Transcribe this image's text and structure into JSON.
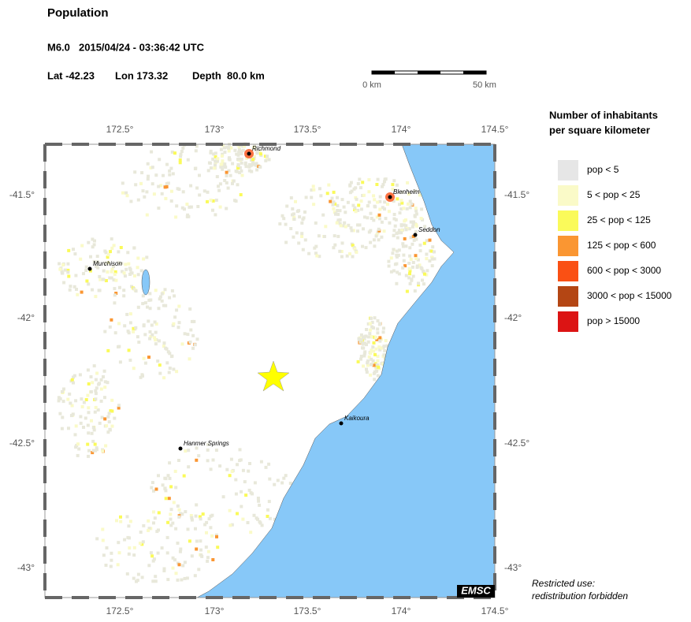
{
  "header": {
    "title": "Population",
    "magnitude": "M6.0",
    "datetime": "2015/04/24 - 03:36:42 UTC",
    "lat": "Lat -42.23",
    "lon": "Lon 173.32",
    "depth": "Depth  80.0 km"
  },
  "scale_bar": {
    "start": "0 km",
    "end": "50 km"
  },
  "map": {
    "lon_ticks": [
      "172.5°",
      "173°",
      "173.5°",
      "174°",
      "174.5°"
    ],
    "lat_ticks": [
      "-41.5°",
      "-42°",
      "-42.5°",
      "-43°"
    ],
    "cities": [
      "Richmond",
      "Blenheim",
      "Seddon",
      "Murchison",
      "Kaikoura",
      "Hanmer Springs"
    ],
    "logo": "EMSC"
  },
  "legend": {
    "title": [
      "Number of inhabitants",
      "per square kilometer"
    ],
    "items": [
      {
        "label": "pop < 5",
        "color": "#e6e6e6"
      },
      {
        "label": "5 < pop < 25",
        "color": "#fafac8"
      },
      {
        "label": "25 < pop < 125",
        "color": "#fafa5a"
      },
      {
        "label": "125 < pop < 600",
        "color": "#fa9632"
      },
      {
        "label": "600 < pop < 3000",
        "color": "#fa5014"
      },
      {
        "label": "3000 < pop < 15000",
        "color": "#b44614"
      },
      {
        "label": "pop > 15000",
        "color": "#dc1414"
      }
    ]
  },
  "footer": [
    "Restricted use:",
    "redistribution forbidden"
  ]
}
